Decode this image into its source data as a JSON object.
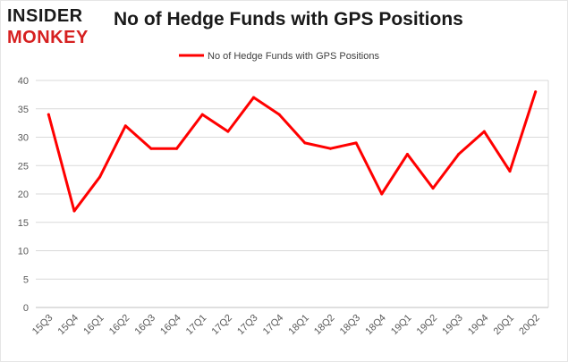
{
  "logo": {
    "line1": "INSIDER",
    "line2": "MONKEY"
  },
  "colors": {
    "series": "#ff0000",
    "grid": "#d9d9d9",
    "axis": "#bfbfbf"
  },
  "chart_data": {
    "type": "line",
    "title": "No of Hedge Funds with GPS Positions",
    "legend_position": "top-center",
    "grid": true,
    "xlabel": "",
    "ylabel": "",
    "ylim": [
      0,
      40
    ],
    "yticks": [
      0,
      5,
      10,
      15,
      20,
      25,
      30,
      35,
      40
    ],
    "categories": [
      "15Q3",
      "15Q4",
      "16Q1",
      "16Q2",
      "16Q3",
      "16Q4",
      "17Q1",
      "17Q2",
      "17Q3",
      "17Q4",
      "18Q1",
      "18Q2",
      "18Q3",
      "18Q4",
      "19Q1",
      "19Q2",
      "19Q3",
      "19Q4",
      "20Q1",
      "20Q2"
    ],
    "series": [
      {
        "name": "No of Hedge Funds with GPS Positions",
        "values": [
          34,
          17,
          23,
          32,
          28,
          28,
          34,
          31,
          37,
          34,
          29,
          28,
          29,
          20,
          27,
          21,
          27,
          31,
          24,
          38
        ]
      }
    ]
  }
}
